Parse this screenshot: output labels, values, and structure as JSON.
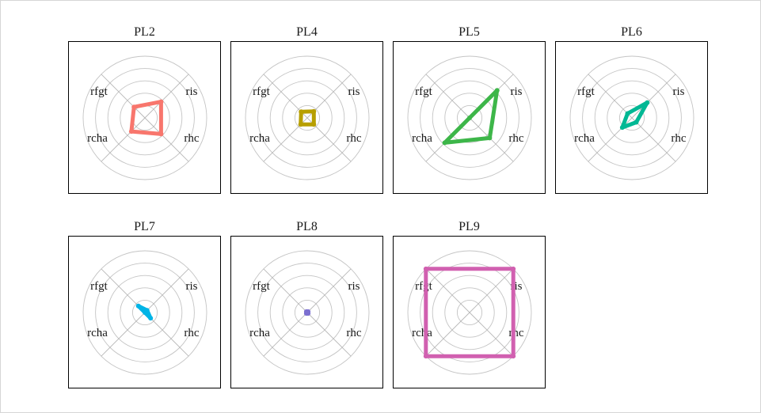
{
  "chart_data": {
    "type": "radar",
    "axes": [
      "ris",
      "rhc",
      "rcha",
      "rfgt"
    ],
    "rlim": [
      0,
      1
    ],
    "rings": 5,
    "grid": true,
    "panels": [
      {
        "title": "PL2",
        "color": "#F8766D",
        "values": {
          "ris": 0.37,
          "rhc": 0.37,
          "rcha": 0.31,
          "rfgt": 0.25
        }
      },
      {
        "title": "PL4",
        "color": "#B79F00",
        "values": {
          "ris": 0.15,
          "rhc": 0.15,
          "rcha": 0.15,
          "rfgt": 0.14
        }
      },
      {
        "title": "PL5",
        "color": "#3DB649",
        "values": {
          "ris": 0.63,
          "rhc": 0.46,
          "rcha": 0.57,
          "rfgt": 0.0
        }
      },
      {
        "title": "PL6",
        "color": "#00B894",
        "values": {
          "ris": 0.35,
          "rhc": 0.1,
          "rcha": 0.22,
          "rfgt": 0.1
        }
      },
      {
        "title": "PL7",
        "color": "#00B4E6",
        "values": {
          "ris": 0.05,
          "rhc": 0.13,
          "rcha": 0.0,
          "rfgt": 0.15
        }
      },
      {
        "title": "PL8",
        "color": "#7B6FD0",
        "values": {
          "ris": 0.02,
          "rhc": 0.02,
          "rcha": 0.02,
          "rfgt": 0.02
        }
      },
      {
        "title": "PL9",
        "color": "#D160B0",
        "values": {
          "ris": 1.0,
          "rhc": 1.0,
          "rcha": 1.0,
          "rfgt": 1.0
        }
      }
    ]
  }
}
